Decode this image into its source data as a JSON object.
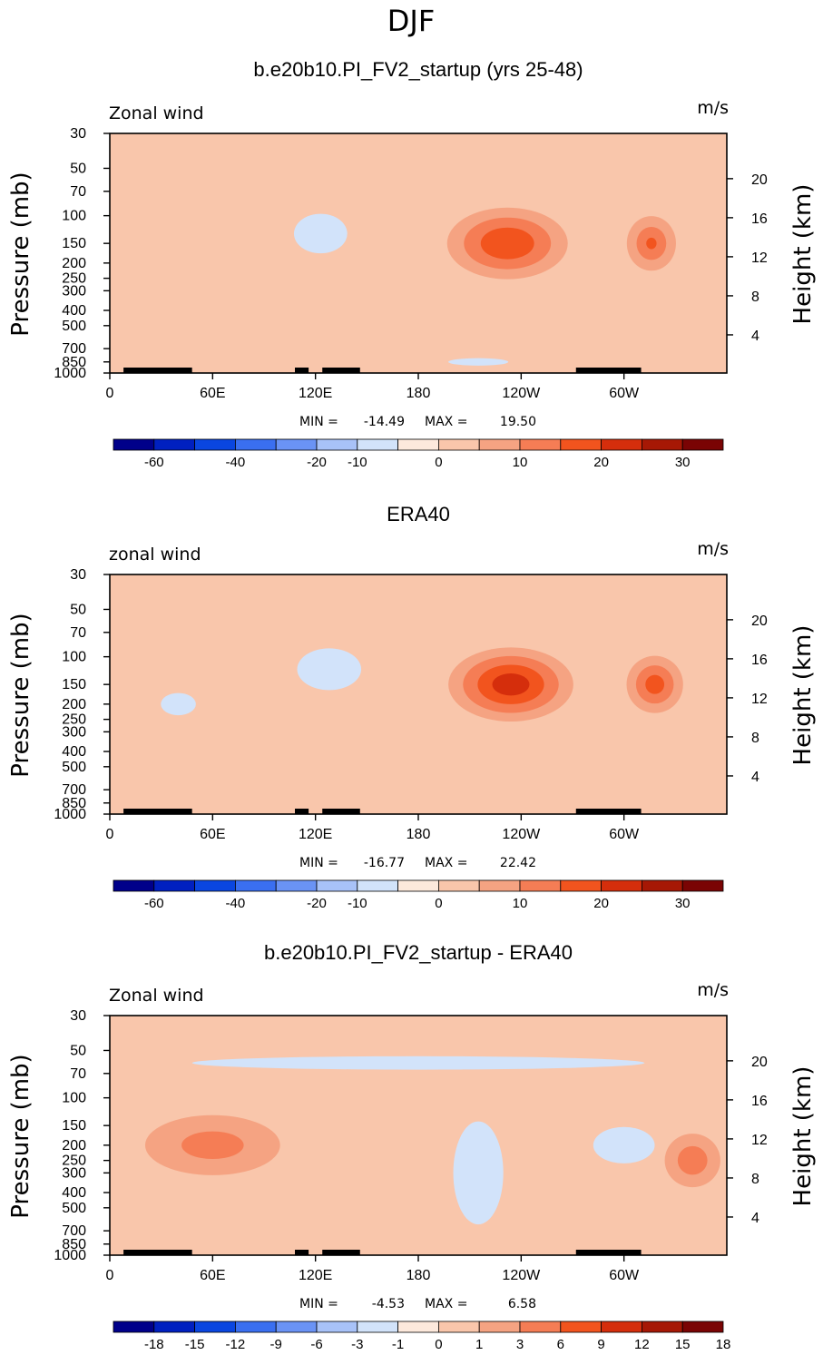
{
  "page_title": "DJF",
  "chart_data": [
    {
      "type": "contour",
      "title": "b.e20b10.PI_FV2_startup (yrs 25-48)",
      "left_string": "Zonal wind",
      "right_string": "m/s",
      "ylabel": "Pressure (mb)",
      "ylabel_right": "Height (km)",
      "pressure_ticks": [
        "30",
        "50",
        "70",
        "100",
        "150",
        "200",
        "250",
        "300",
        "400",
        "500",
        "700",
        "850",
        "1000"
      ],
      "height_ticks": [
        "20",
        "16",
        "12",
        "8",
        "4"
      ],
      "lon_ticks": [
        "0",
        "60E",
        "120E",
        "180",
        "120W",
        "60W"
      ],
      "ylim": [
        1000,
        30
      ],
      "xlim": [
        0,
        360
      ],
      "stats": {
        "min_label": "MIN =",
        "min": "-14.49",
        "max_label": "MAX =",
        "max": "19.50"
      },
      "colorbar": {
        "levels": [
          -70,
          -60,
          -50,
          -40,
          -30,
          -20,
          -10,
          -5,
          0,
          5,
          10,
          15,
          20,
          25,
          30,
          35
        ],
        "labels": [
          "-60",
          "-40",
          "-20",
          "-10",
          "0",
          "10",
          "20",
          "30"
        ]
      },
      "features": [
        {
          "value": 5,
          "lon": 232,
          "p": 150,
          "wl": 45,
          "wp": 1.8,
          "amp": 19.5
        },
        {
          "value": 5,
          "lon": 316,
          "p": 150,
          "wl": 20,
          "wp": 1.5,
          "amp": 15
        },
        {
          "value": -10,
          "lon": 123,
          "p": 130,
          "wl": 22,
          "wp": 1.1,
          "amp": -14.5
        },
        {
          "value": -5,
          "lon": 215,
          "p": 850,
          "wl": 60,
          "wp": 0.5,
          "amp": -6
        }
      ]
    },
    {
      "type": "contour",
      "title": "ERA40",
      "left_string": "zonal wind",
      "right_string": "m/s",
      "ylabel": "Pressure (mb)",
      "ylabel_right": "Height (km)",
      "pressure_ticks": [
        "30",
        "50",
        "70",
        "100",
        "150",
        "200",
        "250",
        "300",
        "400",
        "500",
        "700",
        "850",
        "1000"
      ],
      "height_ticks": [
        "20",
        "16",
        "12",
        "8",
        "4"
      ],
      "lon_ticks": [
        "0",
        "60E",
        "120E",
        "180",
        "120W",
        "60W"
      ],
      "ylim": [
        1000,
        30
      ],
      "xlim": [
        0,
        360
      ],
      "stats": {
        "min_label": "MIN =",
        "min": "-16.77",
        "max_label": "MAX =",
        "max": "22.42"
      },
      "colorbar": {
        "levels": [
          -70,
          -60,
          -50,
          -40,
          -30,
          -20,
          -10,
          -5,
          0,
          5,
          10,
          15,
          20,
          25,
          30,
          35
        ],
        "labels": [
          "-60",
          "-40",
          "-20",
          "-10",
          "0",
          "10",
          "20",
          "30"
        ]
      },
      "features": [
        {
          "value": 5,
          "lon": 234,
          "p": 150,
          "wl": 45,
          "wp": 1.8,
          "amp": 22.4
        },
        {
          "value": 5,
          "lon": 318,
          "p": 150,
          "wl": 22,
          "wp": 1.5,
          "amp": 17
        },
        {
          "value": -10,
          "lon": 128,
          "p": 120,
          "wl": 25,
          "wp": 1.1,
          "amp": -16.8
        },
        {
          "value": -5,
          "lon": 40,
          "p": 200,
          "wl": 35,
          "wp": 1.5,
          "amp": -6
        }
      ]
    },
    {
      "type": "contour",
      "title": "b.e20b10.PI_FV2_startup - ERA40",
      "left_string": "Zonal wind",
      "right_string": "m/s",
      "ylabel": "Pressure (mb)",
      "ylabel_right": "Height (km)",
      "pressure_ticks": [
        "30",
        "50",
        "70",
        "100",
        "150",
        "200",
        "250",
        "300",
        "400",
        "500",
        "700",
        "850",
        "1000"
      ],
      "height_ticks": [
        "20",
        "16",
        "12",
        "8",
        "4"
      ],
      "lon_ticks": [
        "0",
        "60E",
        "120E",
        "180",
        "120W",
        "60W"
      ],
      "ylim": [
        1000,
        30
      ],
      "xlim": [
        0,
        360
      ],
      "stats": {
        "min_label": "MIN =",
        "min": "-4.53",
        "max_label": "MAX =",
        "max": "6.58"
      },
      "colorbar": {
        "levels": [
          -21,
          -18,
          -15,
          -12,
          -9,
          -6,
          -3,
          -1,
          0,
          1,
          3,
          6,
          9,
          12,
          15,
          18
        ],
        "labels": [
          "-18",
          "-15",
          "-12",
          "-9",
          "-6",
          "-3",
          "-1",
          "0",
          "1",
          "3",
          "6",
          "9",
          "12",
          "15",
          "18"
        ]
      },
      "features": [
        {
          "value": -3,
          "lon": 215,
          "p": 300,
          "wl": 18,
          "wp": 2.5,
          "amp": -4.5
        },
        {
          "value": -3,
          "lon": 180,
          "p": 60,
          "wl": 200,
          "wp": 0.4,
          "amp": -2.5
        },
        {
          "value": 3,
          "lon": 60,
          "p": 200,
          "wl": 50,
          "wp": 1.5,
          "amp": 4
        },
        {
          "value": 3,
          "lon": 340,
          "p": 250,
          "wl": 20,
          "wp": 1.3,
          "amp": 4.5
        },
        {
          "value": -1,
          "lon": 300,
          "p": 200,
          "wl": 25,
          "wp": 1.0,
          "amp": -3
        }
      ]
    }
  ],
  "palette": {
    "extended": [
      "#00008a",
      "#0020c0",
      "#0a46e0",
      "#3a6ff0",
      "#6a93f5",
      "#a8c2f8",
      "#d2e3fa",
      "#fde9dc",
      "#f9c6ab",
      "#f5a382",
      "#f57d55",
      "#f2541e",
      "#d52e0c",
      "#a61805",
      "#7a0404"
    ]
  },
  "topography_color": "#000000"
}
